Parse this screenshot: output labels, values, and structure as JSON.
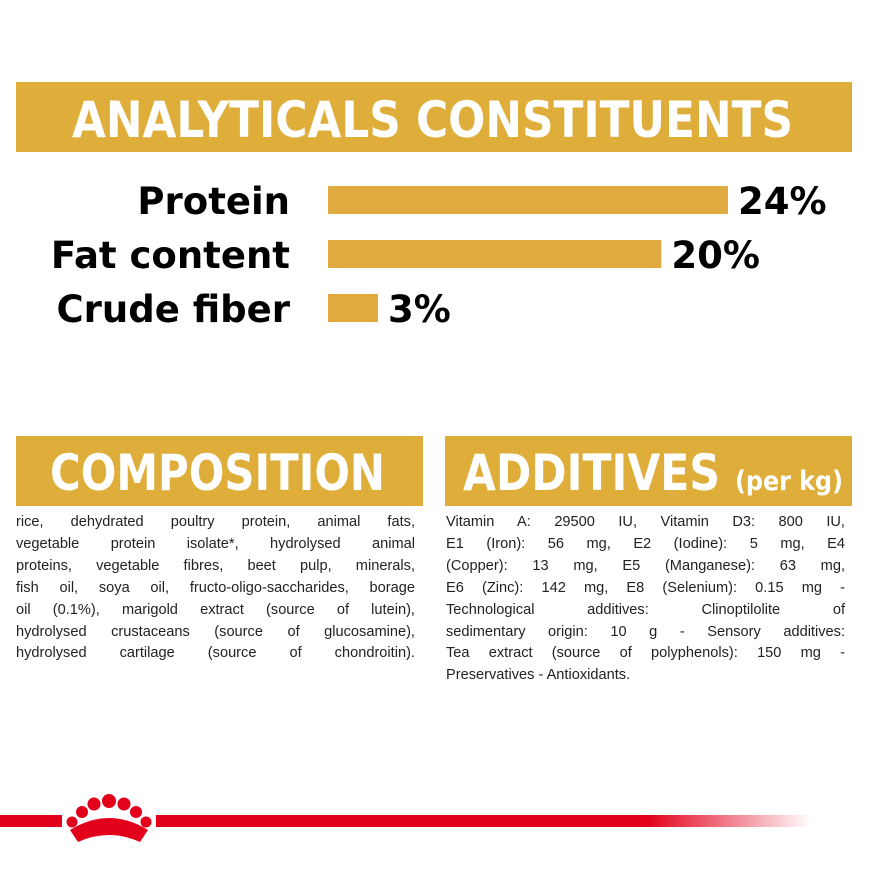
{
  "header": {
    "title": "ANALYTICALS CONSTITUENTS"
  },
  "chart_data": {
    "type": "bar",
    "orientation": "horizontal",
    "color": "#e0aa3e",
    "categories": [
      "Protein",
      "Fat content",
      "Crude fiber"
    ],
    "values": [
      24,
      20,
      3
    ],
    "value_labels": [
      "24%",
      "20%",
      "3%"
    ]
  },
  "composition": {
    "title": "COMPOSITION",
    "lines": [
      "rice, dehydrated poultry protein, animal fats,",
      "vegetable protein isolate*, hydrolysed animal",
      "proteins, vegetable fibres, beet pulp, minerals,",
      "fish oil, soya oil, fructo-oligo-saccharides, borage",
      "oil (0.1%), marigold extract (source of lutein),",
      "hydrolysed crustaceans (source of glucosamine),",
      "hydrolysed cartilage (source of chondroitin)."
    ]
  },
  "additives": {
    "title": "ADDITIVES",
    "subtitle": "(per kg)",
    "lines": [
      "Vitamin A: 29500 IU, Vitamin D3: 800 IU,",
      "E1 (Iron): 56 mg, E2 (Iodine): 5 mg, E4",
      "(Copper): 13 mg, E5 (Manganese): 63 mg,",
      "E6 (Zinc): 142 mg, E8 (Selenium): 0.15 mg -",
      "Technological additives: Clinoptilolite of",
      "sedimentary origin: 10 g - Sensory additives:",
      "Tea extract (source of polyphenols): 150 mg -",
      "Preservatives - Antioxidants."
    ]
  }
}
